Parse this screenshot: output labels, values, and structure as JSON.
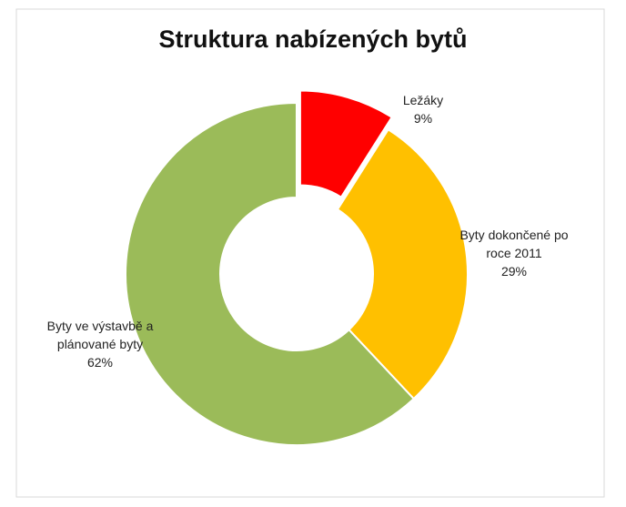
{
  "chart_data": {
    "type": "donut",
    "title": "Struktura nabízených bytů",
    "categories": [
      "Ležáky",
      "Byty dokončené po roce 2011",
      "Byty ve výstavbě a plánované byty"
    ],
    "values": [
      9,
      29,
      62
    ],
    "value_labels": [
      "9%",
      "29%",
      "62%"
    ],
    "colors": [
      "#ff0000",
      "#ffc000",
      "#9bbb59"
    ]
  }
}
